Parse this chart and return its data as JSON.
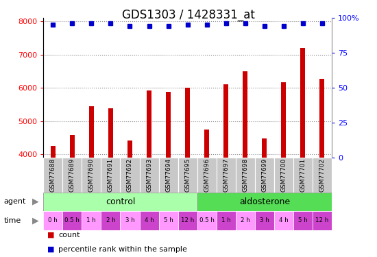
{
  "title": "GDS1303 / 1428331_at",
  "samples": [
    "GSM77688",
    "GSM77689",
    "GSM77690",
    "GSM77691",
    "GSM77692",
    "GSM77693",
    "GSM77694",
    "GSM77695",
    "GSM77696",
    "GSM77697",
    "GSM77698",
    "GSM77699",
    "GSM77700",
    "GSM77701",
    "GSM77702"
  ],
  "counts": [
    4250,
    4580,
    5450,
    5380,
    4420,
    5920,
    5870,
    6000,
    4750,
    6100,
    6490,
    4480,
    6170,
    7200,
    6270
  ],
  "percentiles": [
    95,
    96,
    96,
    96,
    94,
    94,
    94,
    95,
    95,
    96,
    96,
    94,
    94,
    96,
    96
  ],
  "agent_control_count": 8,
  "time_labels": [
    "0 h",
    "0.5 h",
    "1 h",
    "2 h",
    "3 h",
    "4 h",
    "5 h",
    "12 h",
    "0.5 h",
    "1 h",
    "2 h",
    "3 h",
    "4 h",
    "5 h",
    "12 h"
  ],
  "bar_color": "#cc0000",
  "dot_color": "#0000cc",
  "ylim_left": [
    3900,
    8100
  ],
  "ylim_right": [
    0,
    100
  ],
  "yticks_left": [
    4000,
    5000,
    6000,
    7000,
    8000
  ],
  "yticks_right": [
    0,
    25,
    50,
    75,
    100
  ],
  "sample_bg_color": "#c8c8c8",
  "control_color": "#aaffaa",
  "aldo_color": "#55dd55",
  "time_light": "#ff99ff",
  "time_dark": "#cc44cc"
}
